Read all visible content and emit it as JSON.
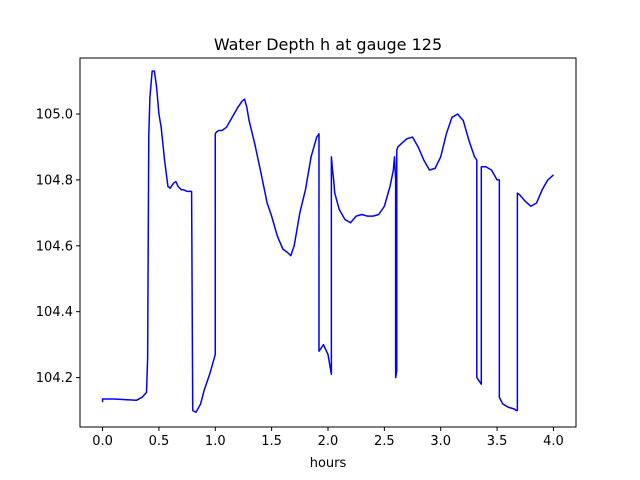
{
  "chart_data": {
    "type": "line",
    "title": "Water Depth h at gauge 125",
    "xlabel": "hours",
    "ylabel": "",
    "xlim": [
      -0.2,
      4.2
    ],
    "ylim": [
      104.05,
      105.17
    ],
    "xticks": [
      0.0,
      0.5,
      1.0,
      1.5,
      2.0,
      2.5,
      3.0,
      3.5,
      4.0
    ],
    "xtick_labels": [
      "0.0",
      "0.5",
      "1.0",
      "1.5",
      "2.0",
      "2.5",
      "3.0",
      "3.5",
      "4.0"
    ],
    "yticks": [
      104.2,
      104.4,
      104.6,
      104.8,
      105.0
    ],
    "ytick_labels": [
      "104.2",
      "104.4",
      "104.6",
      "104.8",
      "105.0"
    ],
    "grid": false,
    "legend": false,
    "series": [
      {
        "color": "#0000ff",
        "x": [
          0.0,
          0.0,
          0.1,
          0.2,
          0.3,
          0.35,
          0.39,
          0.4,
          0.405,
          0.41,
          0.42,
          0.44,
          0.46,
          0.48,
          0.5,
          0.52,
          0.55,
          0.58,
          0.6,
          0.63,
          0.65,
          0.67,
          0.7,
          0.72,
          0.75,
          0.79,
          0.8,
          0.8,
          0.83,
          0.87,
          0.9,
          0.95,
          1.0,
          1.0,
          1.01,
          1.03,
          1.06,
          1.1,
          1.15,
          1.2,
          1.24,
          1.26,
          1.28,
          1.3,
          1.35,
          1.4,
          1.43,
          1.46,
          1.5,
          1.55,
          1.6,
          1.64,
          1.67,
          1.7,
          1.75,
          1.8,
          1.85,
          1.9,
          1.92,
          1.92,
          1.94,
          1.96,
          2.0,
          2.03,
          2.03,
          2.04,
          2.05,
          2.06,
          2.1,
          2.15,
          2.2,
          2.25,
          2.3,
          2.35,
          2.4,
          2.45,
          2.5,
          2.55,
          2.58,
          2.59,
          2.6,
          2.6,
          2.61,
          2.61,
          2.62,
          2.65,
          2.7,
          2.75,
          2.8,
          2.85,
          2.9,
          2.95,
          3.0,
          3.05,
          3.1,
          3.15,
          3.2,
          3.25,
          3.3,
          3.32,
          3.32,
          3.36,
          3.36,
          3.4,
          3.45,
          3.5,
          3.52,
          3.52,
          3.55,
          3.6,
          3.65,
          3.67,
          3.68,
          3.68,
          3.7,
          3.75,
          3.8,
          3.85,
          3.9,
          3.95,
          4.0
        ],
        "y": [
          104.125,
          104.135,
          104.135,
          104.133,
          104.131,
          104.14,
          104.155,
          104.26,
          104.6,
          104.93,
          105.05,
          105.13,
          105.13,
          105.08,
          105.0,
          104.96,
          104.86,
          104.78,
          104.775,
          104.79,
          104.795,
          104.78,
          104.77,
          104.77,
          104.765,
          104.765,
          104.1,
          104.1,
          104.095,
          104.12,
          104.16,
          104.21,
          104.27,
          104.94,
          104.945,
          104.95,
          104.95,
          104.96,
          104.99,
          105.02,
          105.04,
          105.045,
          105.02,
          104.98,
          104.91,
          104.83,
          104.78,
          104.73,
          104.69,
          104.63,
          104.59,
          104.58,
          104.57,
          104.6,
          104.7,
          104.77,
          104.87,
          104.93,
          104.94,
          104.28,
          104.29,
          104.3,
          104.27,
          104.21,
          104.87,
          104.83,
          104.8,
          104.76,
          104.71,
          104.68,
          104.67,
          104.69,
          104.695,
          104.69,
          104.69,
          104.695,
          104.72,
          104.78,
          104.83,
          104.87,
          104.8,
          104.2,
          104.22,
          104.89,
          104.9,
          104.91,
          104.925,
          104.93,
          104.9,
          104.86,
          104.83,
          104.835,
          104.87,
          104.94,
          104.99,
          105.0,
          104.98,
          104.92,
          104.87,
          104.86,
          104.2,
          104.18,
          104.84,
          104.84,
          104.83,
          104.8,
          104.8,
          104.14,
          104.12,
          104.11,
          104.105,
          104.1,
          104.1,
          104.76,
          104.755,
          104.735,
          104.72,
          104.73,
          104.77,
          104.8,
          104.815
        ]
      }
    ]
  }
}
